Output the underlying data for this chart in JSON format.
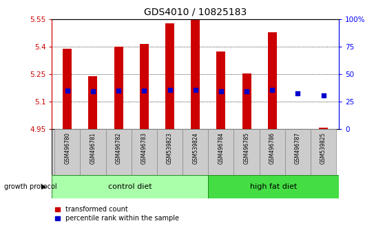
{
  "title": "GDS4010 / 10825183",
  "samples": [
    "GSM496780",
    "GSM496781",
    "GSM496782",
    "GSM496783",
    "GSM539823",
    "GSM539824",
    "GSM496784",
    "GSM496785",
    "GSM496786",
    "GSM496787",
    "GSM539825"
  ],
  "bar_bottom": 4.95,
  "red_values": [
    5.39,
    5.24,
    5.4,
    5.415,
    5.53,
    5.55,
    5.375,
    5.255,
    5.48,
    4.95,
    4.955
  ],
  "blue_values": [
    5.16,
    5.155,
    5.16,
    5.16,
    5.165,
    5.165,
    5.155,
    5.155,
    5.165,
    5.145,
    5.135
  ],
  "ylim_left": [
    4.95,
    5.55
  ],
  "ylim_right": [
    0,
    100
  ],
  "yticks_left": [
    4.95,
    5.1,
    5.25,
    5.4,
    5.55
  ],
  "yticks_right": [
    0,
    25,
    50,
    75,
    100
  ],
  "ytick_labels_left": [
    "4.95",
    "5.1",
    "5.25",
    "5.4",
    "5.55"
  ],
  "ytick_labels_right": [
    "0",
    "25",
    "50",
    "75",
    "100%"
  ],
  "control_color": "#AAFFAA",
  "high_fat_color": "#44DD44",
  "bar_red_color": "#CC0000",
  "bar_blue_color": "#0000CC",
  "bar_width": 0.35,
  "legend_red_label": "transformed count",
  "legend_blue_label": "percentile rank within the sample",
  "growth_protocol_label": "growth protocol",
  "control_label": "control diet",
  "high_fat_label": "high fat diet",
  "n_control": 6,
  "n_total": 11
}
